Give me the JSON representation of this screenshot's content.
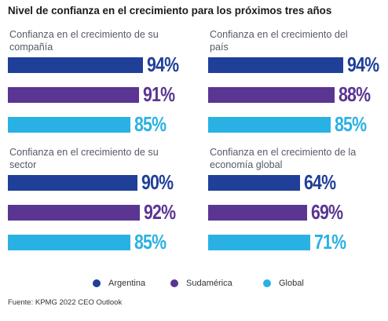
{
  "title": "Nivel de confianza en el crecimiento para los próximos tres años",
  "source": "Fuente: KPMG 2022 CEO Outlook",
  "colors": {
    "Argentina": "#1f3f99",
    "Sudamérica": "#5a3592",
    "Global": "#2ab1e4"
  },
  "legend": [
    {
      "label": "Argentina",
      "color": "#1f3f99"
    },
    {
      "label": "Sudamérica",
      "color": "#5a3592"
    },
    {
      "label": "Global",
      "color": "#2ab1e4"
    }
  ],
  "chart_data": [
    {
      "type": "bar",
      "title": "Confianza en el crecimiento de su compañía",
      "categories": [
        "Argentina",
        "Sudamérica",
        "Global"
      ],
      "values": [
        94,
        91,
        85
      ],
      "labels": [
        "94%",
        "91%",
        "85%"
      ]
    },
    {
      "type": "bar",
      "title": "Confianza en el crecimiento del país",
      "categories": [
        "Argentina",
        "Sudamérica",
        "Global"
      ],
      "values": [
        94,
        88,
        85
      ],
      "labels": [
        "94%",
        "88%",
        "85%"
      ]
    },
    {
      "type": "bar",
      "title": "Confianza en el crecimiento de su sector",
      "categories": [
        "Argentina",
        "Sudamérica",
        "Global"
      ],
      "values": [
        90,
        92,
        85
      ],
      "labels": [
        "90%",
        "92%",
        "85%"
      ]
    },
    {
      "type": "bar",
      "title": "Confianza en el crecimiento de la economía global",
      "categories": [
        "Argentina",
        "Sudamérica",
        "Global"
      ],
      "values": [
        64,
        69,
        71
      ],
      "labels": [
        "64%",
        "69%",
        "71%"
      ]
    }
  ]
}
